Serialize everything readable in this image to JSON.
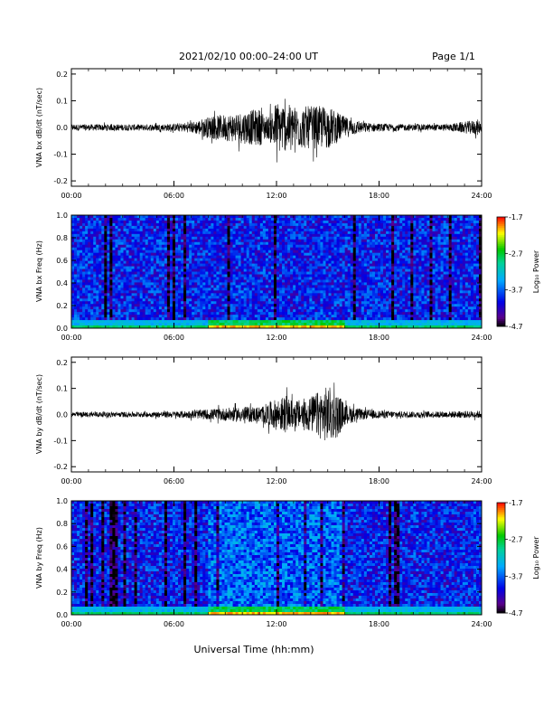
{
  "header": {
    "title": "2021/02/10  00:00–24:00 UT",
    "page": "Page 1/1"
  },
  "xaxis_label": "Universal Time (hh:mm)",
  "chart_data": [
    {
      "type": "line",
      "ylabel": "VNA bx dB/dt (nT/sec)",
      "xlim": [
        0,
        24
      ],
      "ylim": [
        -0.22,
        0.22
      ],
      "x_ticks": [
        "00:00",
        "06:00",
        "12:00",
        "18:00",
        "24:00"
      ],
      "y_ticks": [
        "0.2",
        "0.1",
        "0.0",
        "-0.1",
        "-0.2"
      ],
      "envelope": {
        "hours": [
          0,
          2,
          4,
          6,
          7,
          8,
          9,
          10,
          11,
          11.5,
          12,
          12.5,
          13,
          14,
          15,
          16,
          17,
          18,
          20,
          22,
          23.8,
          24
        ],
        "amplitude": [
          0.012,
          0.012,
          0.012,
          0.014,
          0.02,
          0.04,
          0.05,
          0.06,
          0.07,
          0.04,
          0.1,
          0.09,
          0.08,
          0.08,
          0.08,
          0.04,
          0.02,
          0.015,
          0.012,
          0.012,
          0.03,
          0.015
        ]
      }
    },
    {
      "type": "heatmap",
      "ylabel": "VNA bx Freq (Hz)",
      "xlim": [
        0,
        24
      ],
      "ylim": [
        0,
        1.0
      ],
      "x_ticks": [
        "00:00",
        "06:00",
        "12:00",
        "18:00",
        "24:00"
      ],
      "y_ticks": [
        "1.0",
        "0.8",
        "0.6",
        "0.4",
        "0.2",
        "0.0"
      ],
      "colorbar": {
        "label": "Log₁₀ Power",
        "ticks": [
          "-1.7",
          "-2.7",
          "-3.7",
          "-4.7"
        ],
        "range": [
          -4.7,
          -1.7
        ]
      },
      "low_freq_enhancement": {
        "hours": [
          8,
          16
        ],
        "peak_power": -1.7
      }
    },
    {
      "type": "line",
      "ylabel": "VNA by dB/dt (nT/sec)",
      "xlim": [
        0,
        24
      ],
      "ylim": [
        -0.22,
        0.22
      ],
      "x_ticks": [
        "00:00",
        "06:00",
        "12:00",
        "18:00",
        "24:00"
      ],
      "y_ticks": [
        "0.2",
        "0.1",
        "0.0",
        "-0.1",
        "-0.2"
      ],
      "envelope": {
        "hours": [
          0,
          2,
          4,
          6,
          7,
          8,
          9,
          10,
          11,
          12,
          12.5,
          13,
          14,
          15,
          15.5,
          16,
          17,
          18,
          20,
          22,
          24
        ],
        "amplitude": [
          0.01,
          0.01,
          0.01,
          0.012,
          0.015,
          0.02,
          0.025,
          0.03,
          0.03,
          0.06,
          0.07,
          0.05,
          0.07,
          0.11,
          0.09,
          0.04,
          0.02,
          0.015,
          0.012,
          0.012,
          0.015
        ]
      }
    },
    {
      "type": "heatmap",
      "ylabel": "VNA by Freq (Hz)",
      "xlim": [
        0,
        24
      ],
      "ylim": [
        0,
        1.0
      ],
      "x_ticks": [
        "00:00",
        "06:00",
        "12:00",
        "18:00",
        "24:00"
      ],
      "y_ticks": [
        "1.0",
        "0.8",
        "0.6",
        "0.4",
        "0.2",
        "0.0"
      ],
      "colorbar": {
        "label": "Log₁₀ Power",
        "ticks": [
          "-1.7",
          "-2.7",
          "-3.7",
          "-4.7"
        ],
        "range": [
          -4.7,
          -1.7
        ]
      },
      "low_freq_enhancement": {
        "hours": [
          8,
          16
        ],
        "peak_power": -1.7
      }
    }
  ]
}
